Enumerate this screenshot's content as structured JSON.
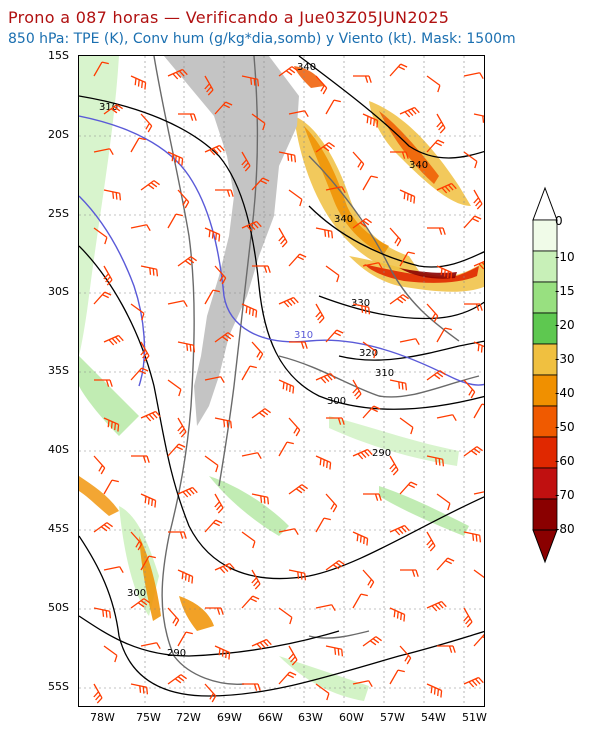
{
  "header": {
    "title": "Prono a 087 horas — Verificando a Jue03Z05JUN2025",
    "subtitle": "850 hPa: TPE (K), Conv hum (g/kg*dia,somb) y Viento (kt). Mask: 1500m"
  },
  "map": {
    "lat_labels": [
      "15S",
      "20S",
      "25S",
      "30S",
      "35S",
      "40S",
      "45S",
      "50S",
      "55S"
    ],
    "lon_labels": [
      "78W",
      "75W",
      "72W",
      "69W",
      "66W",
      "63W",
      "60W",
      "57W",
      "54W",
      "51W"
    ],
    "lat_range": [
      -56,
      -15
    ],
    "lon_range": [
      -79.5,
      -50.5
    ],
    "contour_labels": [
      "340",
      "340",
      "340",
      "330",
      "320",
      "310",
      "310",
      "310",
      "300",
      "290",
      "300",
      "290"
    ],
    "mask_color": "#c4c4c4",
    "contour_color": "#000000",
    "highlight_contour_color": "#5a5ad8",
    "wind_barb_color": "#ff3c00"
  },
  "colorbar": {
    "labels": [
      "0",
      "-10",
      "-15",
      "-20",
      "-30",
      "-40",
      "-50",
      "-60",
      "-70",
      "-80"
    ],
    "colors": [
      "#f0fbe8",
      "#c8f0b8",
      "#98e080",
      "#5ec850",
      "#f0c040",
      "#f09000",
      "#f05a00",
      "#e02800",
      "#c01010",
      "#8a0000"
    ]
  }
}
